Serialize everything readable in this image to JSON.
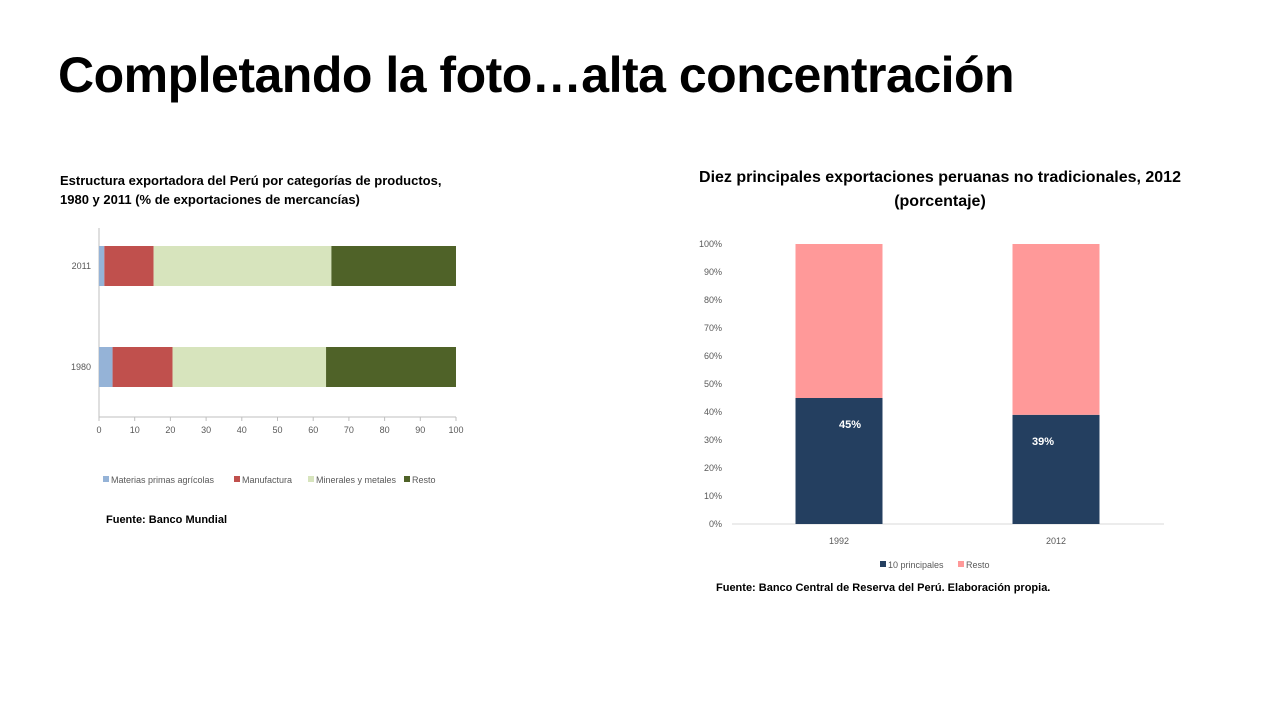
{
  "slide": {
    "title": "Completando la foto…alta concentración"
  },
  "left_chart": {
    "title_line1": "Estructura exportadora del Perú por categorías de productos,",
    "title_line2": "1980 y 2011 (% de exportaciones de mercancías)",
    "source": "Fuente: Banco Mundial"
  },
  "right_chart": {
    "title_line1": "Diez principales exportaciones peruanas no tradicionales, 2012",
    "title_line2": "(porcentaje)",
    "source": "Fuente: Banco Central de Reserva del Perú. Elaboración propia."
  },
  "chart_data": [
    {
      "type": "bar",
      "orientation": "horizontal",
      "stacked": true,
      "categories": [
        "2011",
        "1980"
      ],
      "series": [
        {
          "name": "Materias primas agrícolas",
          "color": "#95b3d7",
          "values": [
            1.5,
            3.8
          ]
        },
        {
          "name": "Manufactura",
          "color": "#c0504d",
          "values": [
            13.8,
            16.8
          ]
        },
        {
          "name": "Minerales y metales",
          "color": "#d7e4bd",
          "values": [
            49.8,
            43
          ]
        },
        {
          "name": "Resto",
          "color": "#4f6228",
          "values": [
            34.9,
            36.4
          ]
        }
      ],
      "xlim": [
        0,
        100
      ],
      "xticks": [
        "0",
        "10",
        "20",
        "30",
        "40",
        "50",
        "60",
        "70",
        "80",
        "90",
        "100"
      ],
      "legend": "bottom",
      "grid": false
    },
    {
      "type": "bar",
      "orientation": "vertical",
      "stacked": true,
      "percent_stacked": true,
      "categories": [
        "1992",
        "2012"
      ],
      "series": [
        {
          "name": "10 principales",
          "color": "#243f60",
          "values": [
            45,
            39
          ],
          "labels": [
            "45%",
            "39%"
          ]
        },
        {
          "name": "Resto",
          "color": "#ff9999",
          "values": [
            55,
            61
          ]
        }
      ],
      "ylim": [
        0,
        100
      ],
      "yticks": [
        "0%",
        "10%",
        "20%",
        "30%",
        "40%",
        "50%",
        "60%",
        "70%",
        "80%",
        "90%",
        "100%"
      ],
      "legend": "bottom",
      "grid": false
    }
  ]
}
